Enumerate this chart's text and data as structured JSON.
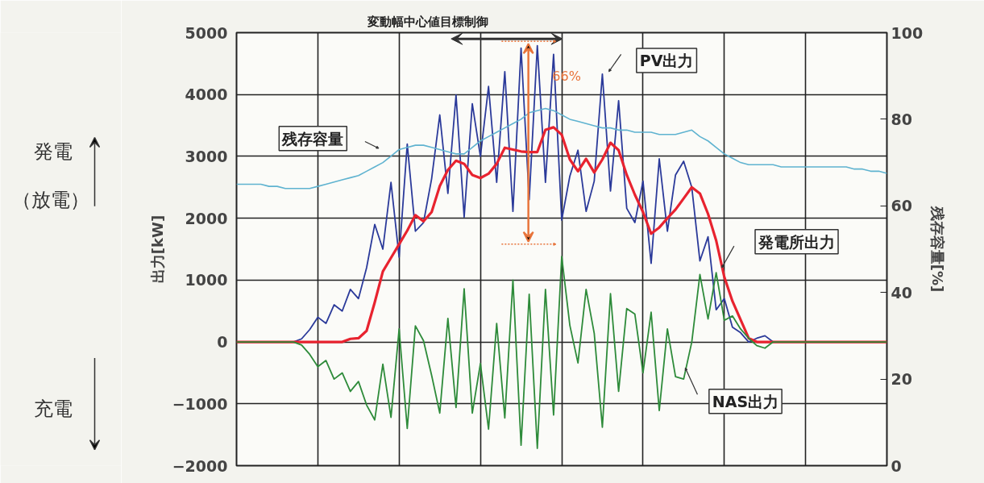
{
  "chart_data": {
    "type": "line",
    "title": "変動幅中心値目標制御",
    "ylabel": "出力[kW]",
    "y2label": "残存容量[%]",
    "categories": [
      null,
      null,
      null,
      null,
      null,
      null,
      null,
      null,
      null,
      null,
      null,
      null,
      null,
      null,
      null,
      null,
      null,
      null,
      null,
      null,
      null,
      null,
      null,
      null,
      null,
      null,
      null,
      null,
      null,
      null,
      null,
      null,
      null,
      null,
      null,
      null,
      null,
      null,
      null,
      null,
      null,
      null,
      null,
      null,
      null,
      null,
      null,
      null,
      null,
      null,
      null,
      null,
      null,
      null,
      null,
      null,
      null,
      null,
      null,
      null,
      null,
      null,
      null,
      null,
      null,
      null,
      null,
      null,
      null,
      null,
      null,
      null,
      null,
      null,
      null,
      null,
      null,
      null,
      null,
      null,
      null
    ],
    "series": [
      {
        "name": "PV出力",
        "color": "#2b3a9a",
        "values": [
          null,
          null,
          null,
          null,
          null,
          null,
          0,
          0,
          50,
          200,
          400,
          300,
          600,
          500,
          850,
          700,
          1200,
          1900,
          1500,
          2580,
          1370,
          3200,
          1790,
          1930,
          2640,
          3670,
          2400,
          3990,
          2020,
          3850,
          3000,
          4130,
          2580,
          4370,
          2110,
          4750,
          2300,
          4790,
          2580,
          4650,
          1970,
          2680,
          3100,
          2110,
          2600,
          4330,
          2440,
          3900,
          2160,
          1930,
          2600,
          1270,
          2960,
          1790,
          2700,
          2920,
          2500,
          1310,
          1700,
          520,
          700,
          240,
          150,
          0,
          60,
          100,
          0,
          0,
          null,
          null,
          null,
          null,
          null,
          null,
          null,
          null,
          null,
          null,
          null,
          null,
          null
        ]
      },
      {
        "name": "発電所出力",
        "color": "#e8232f",
        "values": [
          0,
          0,
          0,
          0,
          0,
          0,
          0,
          0,
          0,
          0,
          0,
          0,
          0,
          0,
          50,
          60,
          180,
          640,
          1140,
          1360,
          1580,
          1800,
          2050,
          1950,
          2100,
          2520,
          2780,
          2930,
          2880,
          2700,
          2650,
          2720,
          2880,
          3140,
          3110,
          3080,
          3070,
          3070,
          3430,
          3470,
          3350,
          2950,
          2760,
          2960,
          2740,
          2950,
          3220,
          3100,
          2700,
          2380,
          2100,
          1750,
          1850,
          2000,
          2140,
          2320,
          2500,
          2400,
          2070,
          1640,
          1050,
          660,
          360,
          60,
          0,
          0,
          0,
          0,
          0,
          0,
          0,
          0,
          0,
          0,
          0,
          0,
          0,
          0,
          0,
          0,
          0
        ]
      },
      {
        "name": "NAS出力",
        "color": "#2e8b3a",
        "values": [
          0,
          0,
          0,
          0,
          0,
          0,
          0,
          0,
          -50,
          -200,
          -400,
          -300,
          -600,
          -500,
          -800,
          -640,
          -1020,
          -1260,
          -360,
          -1220,
          210,
          -1400,
          260,
          20,
          -540,
          -1150,
          380,
          -1060,
          860,
          -1150,
          -350,
          -1410,
          300,
          -1230,
          1000,
          -1670,
          770,
          -1720,
          850,
          -1180,
          1380,
          270,
          -340,
          850,
          140,
          -1380,
          780,
          -800,
          540,
          450,
          -500,
          480,
          -1110,
          210,
          -560,
          -600,
          0,
          1090,
          370,
          1120,
          350,
          420,
          210,
          60,
          -60,
          -100,
          0,
          0,
          0,
          0,
          0,
          0,
          0,
          0,
          0,
          0,
          0,
          0,
          0,
          0,
          0
        ]
      },
      {
        "name": "残存容量",
        "color": "#5fb3d0",
        "axis": "y2",
        "values": [
          65,
          65,
          65,
          65,
          64.5,
          64.5,
          64,
          64,
          64,
          64,
          64.5,
          65,
          65.5,
          66,
          66.5,
          67,
          68,
          69,
          70,
          71.5,
          73,
          73.5,
          74,
          74,
          73.5,
          73,
          72.5,
          72,
          72,
          73.5,
          75,
          76,
          77,
          78,
          79,
          80,
          81.5,
          82,
          82.5,
          82,
          81,
          80,
          79.5,
          79,
          78.5,
          78,
          78,
          77.5,
          77.5,
          77,
          77,
          77,
          76.5,
          76.5,
          76.5,
          77,
          77.5,
          76,
          75,
          73.5,
          72,
          71,
          70,
          69.5,
          69.5,
          69.5,
          69.5,
          69,
          69,
          69,
          69,
          69,
          69,
          69,
          69,
          69,
          68.5,
          68.5,
          68,
          68,
          67.5
        ]
      }
    ],
    "ylim": [
      -2000,
      5000
    ],
    "yticks": [
      -2000,
      -1000,
      0,
      1000,
      2000,
      3000,
      4000,
      5000
    ],
    "y2lim": [
      0,
      100
    ],
    "y2ticks": [
      0,
      20,
      40,
      60,
      80,
      100
    ],
    "annotations": [
      "発電",
      "（放電）",
      "充電",
      "66%"
    ],
    "grid": true,
    "legend": false,
    "tick_labels": "y",
    "line_style": "solid",
    "marker": "none"
  }
}
